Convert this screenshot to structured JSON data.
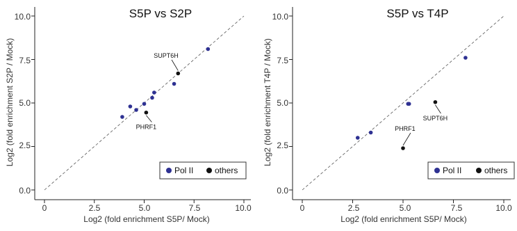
{
  "colors": {
    "pol2": "#2E3192",
    "others": "#111111",
    "diagonal": "#555555"
  },
  "chart_data": [
    {
      "type": "scatter",
      "title": "S5P vs S2P",
      "xlabel": "Log2 (fold enrichment S5P/ Mock)",
      "ylabel": "Log2 (fold enrichment S2P / Mock)",
      "xlim": [
        0,
        10.0
      ],
      "ylim": [
        0,
        10.0
      ],
      "xticks": [
        "0",
        "2.5",
        "5.0",
        "7.5",
        "10.0"
      ],
      "yticks": [
        "0.0",
        "2.5",
        "5.0",
        "7.5",
        "10.0"
      ],
      "grid": false,
      "reference_line": "y = x (dashed)",
      "legend_position": "bottom-right",
      "series": [
        {
          "name": "Pol II",
          "color_key": "pol2",
          "points": [
            {
              "x": 3.9,
              "y": 4.2
            },
            {
              "x": 4.3,
              "y": 4.8
            },
            {
              "x": 4.6,
              "y": 4.6
            },
            {
              "x": 5.0,
              "y": 4.95
            },
            {
              "x": 5.4,
              "y": 5.3
            },
            {
              "x": 5.5,
              "y": 5.6
            },
            {
              "x": 6.5,
              "y": 6.1
            },
            {
              "x": 8.2,
              "y": 8.1
            }
          ]
        },
        {
          "name": "others",
          "color_key": "others",
          "points": [
            {
              "x": 6.7,
              "y": 6.7,
              "label": "SUPT6H"
            },
            {
              "x": 5.1,
              "y": 4.45,
              "label": "PHRF1"
            }
          ]
        }
      ],
      "annotations": [
        {
          "text": "SUPT6H",
          "x": 6.1,
          "y": 7.6
        },
        {
          "text": "PHRF1",
          "x": 5.1,
          "y": 3.5
        }
      ]
    },
    {
      "type": "scatter",
      "title": "S5P vs T4P",
      "xlabel": "Log2 (fold enrichment S5P/ Mock)",
      "ylabel": "Log2 (fold enrichment T4P / Mock)",
      "xlim": [
        0,
        10.0
      ],
      "ylim": [
        0,
        10.0
      ],
      "xticks": [
        "0",
        "2.5",
        "5.0",
        "7.5",
        "10.0"
      ],
      "yticks": [
        "0.0",
        "2.5",
        "5.0",
        "7.5",
        "10.0"
      ],
      "grid": false,
      "reference_line": "y = x (dashed)",
      "legend_position": "bottom-right",
      "series": [
        {
          "name": "Pol II",
          "color_key": "pol2",
          "points": [
            {
              "x": 2.75,
              "y": 3.0
            },
            {
              "x": 3.4,
              "y": 3.3
            },
            {
              "x": 5.25,
              "y": 4.95
            },
            {
              "x": 5.3,
              "y": 4.95
            },
            {
              "x": 8.1,
              "y": 7.6
            }
          ]
        },
        {
          "name": "others",
          "color_key": "others",
          "points": [
            {
              "x": 6.6,
              "y": 5.05,
              "label": "SUPT6H"
            },
            {
              "x": 5.0,
              "y": 2.4,
              "label": "PHRF1"
            }
          ]
        }
      ],
      "annotations": [
        {
          "text": "SUPT6H",
          "x": 6.6,
          "y": 4.0
        },
        {
          "text": "PHRF1",
          "x": 5.1,
          "y": 3.4
        }
      ]
    }
  ]
}
